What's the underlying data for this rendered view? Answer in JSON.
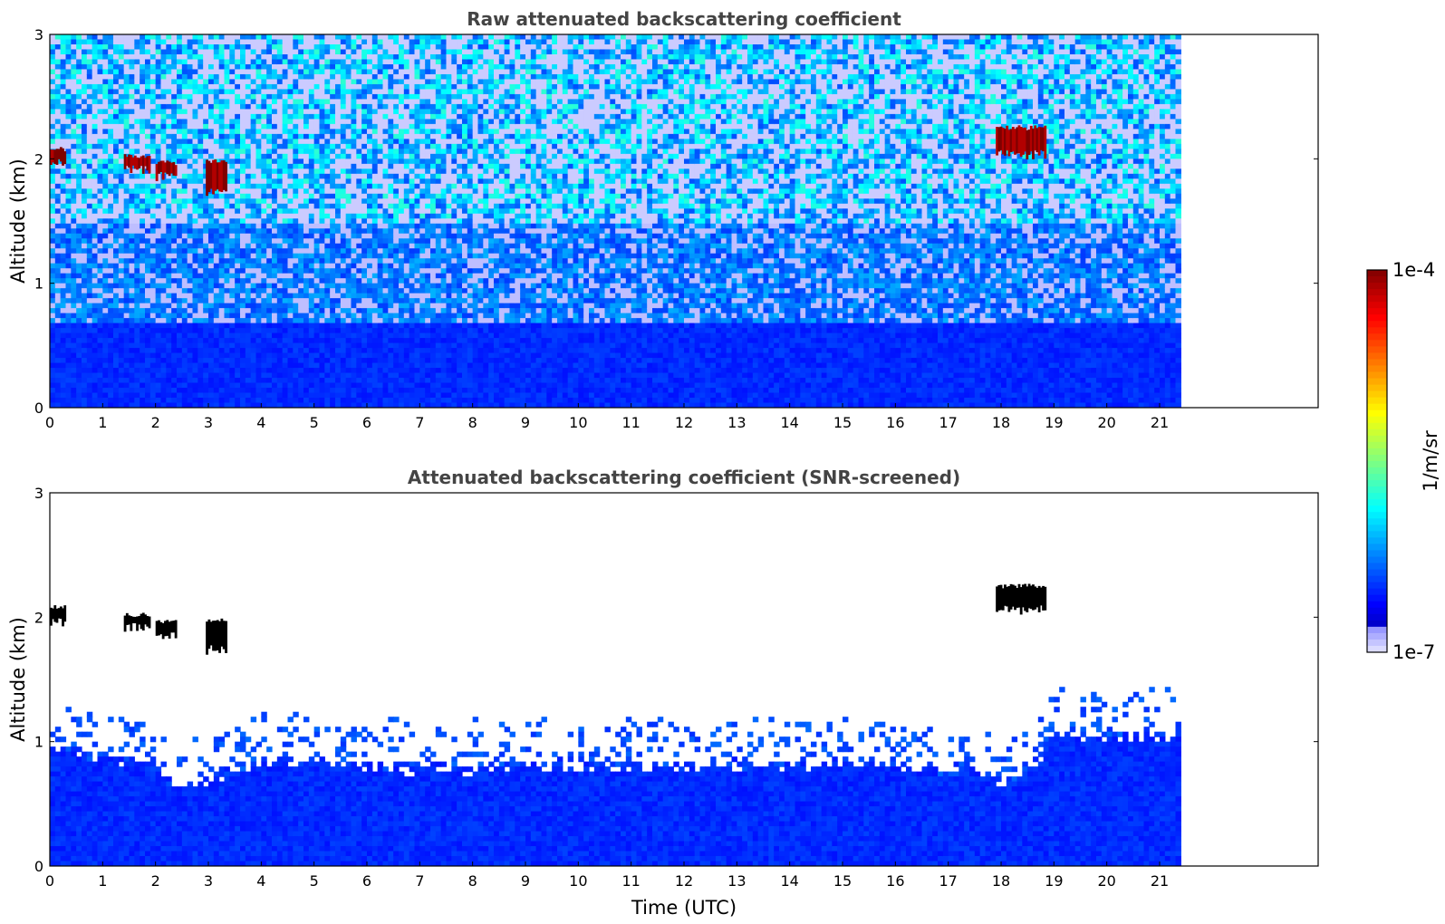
{
  "chart_data": [
    {
      "type": "heatmap",
      "title": "Raw attenuated backscattering coefficient",
      "xlabel": "",
      "ylabel": "Altitude (km)",
      "xlim": [
        0,
        24
      ],
      "ylim": [
        0,
        3
      ],
      "data_extent_x": [
        0,
        21.4
      ],
      "x_ticks": [
        "0",
        "1",
        "2",
        "3",
        "4",
        "5",
        "6",
        "7",
        "8",
        "9",
        "10",
        "11",
        "12",
        "13",
        "14",
        "15",
        "16",
        "17",
        "18",
        "19",
        "20",
        "21"
      ],
      "y_ticks": [
        "0",
        "1",
        "2",
        "3"
      ],
      "grid": false,
      "background": {
        "description_levels_by_altitude_km": [
          {
            "alt": [
              0.0,
              0.7
            ],
            "level": 0.15
          },
          {
            "alt": [
              0.7,
              1.5
            ],
            "level": 0.22
          },
          {
            "alt": [
              1.5,
              3.0
            ],
            "level": 0.35
          }
        ],
        "noise": true
      },
      "features": [
        {
          "t0": 0.0,
          "t1": 0.3,
          "alt_bottom": 1.98,
          "alt_top": 2.08,
          "level": 0.98
        },
        {
          "t0": 1.4,
          "t1": 1.9,
          "alt_bottom": 1.93,
          "alt_top": 2.02,
          "level": 0.96
        },
        {
          "t0": 2.0,
          "t1": 2.4,
          "alt_bottom": 1.87,
          "alt_top": 1.97,
          "level": 0.96
        },
        {
          "t0": 2.95,
          "t1": 3.35,
          "alt_bottom": 1.75,
          "alt_top": 1.98,
          "level": 0.97
        },
        {
          "t0": 17.9,
          "t1": 18.85,
          "alt_bottom": 2.05,
          "alt_top": 2.25,
          "level": 0.97
        }
      ]
    },
    {
      "type": "heatmap",
      "title": "Attenuated backscattering coefficient (SNR-screened)",
      "xlabel": "Time (UTC)",
      "ylabel": "Altitude (km)",
      "xlim": [
        0,
        24
      ],
      "ylim": [
        0,
        3
      ],
      "data_extent_x": [
        0,
        21.4
      ],
      "x_ticks": [
        "0",
        "1",
        "2",
        "3",
        "4",
        "5",
        "6",
        "7",
        "8",
        "9",
        "10",
        "11",
        "12",
        "13",
        "14",
        "15",
        "16",
        "17",
        "18",
        "19",
        "20",
        "21"
      ],
      "y_ticks": [
        "0",
        "1",
        "2",
        "3"
      ],
      "grid": false,
      "screened_top_km": [
        {
          "t": 0.0,
          "alt": 0.95
        },
        {
          "t": 1.0,
          "alt": 0.88
        },
        {
          "t": 2.0,
          "alt": 0.8
        },
        {
          "t": 2.3,
          "alt": 0.66
        },
        {
          "t": 3.0,
          "alt": 0.7
        },
        {
          "t": 4.0,
          "alt": 0.85
        },
        {
          "t": 6.0,
          "alt": 0.8
        },
        {
          "t": 8.0,
          "alt": 0.78
        },
        {
          "t": 10.0,
          "alt": 0.82
        },
        {
          "t": 12.0,
          "alt": 0.8
        },
        {
          "t": 14.0,
          "alt": 0.82
        },
        {
          "t": 16.0,
          "alt": 0.8
        },
        {
          "t": 17.5,
          "alt": 0.78
        },
        {
          "t": 18.0,
          "alt": 0.65
        },
        {
          "t": 18.6,
          "alt": 0.8
        },
        {
          "t": 19.0,
          "alt": 1.05
        },
        {
          "t": 21.4,
          "alt": 1.05
        }
      ],
      "features": [
        {
          "t0": 0.0,
          "t1": 0.3,
          "alt_bottom": 1.98,
          "alt_top": 2.08,
          "level": 1.0
        },
        {
          "t0": 1.4,
          "t1": 1.9,
          "alt_bottom": 1.93,
          "alt_top": 2.02,
          "level": 1.0
        },
        {
          "t0": 2.0,
          "t1": 2.4,
          "alt_bottom": 1.87,
          "alt_top": 1.97,
          "level": 1.0
        },
        {
          "t0": 2.95,
          "t1": 3.35,
          "alt_bottom": 1.75,
          "alt_top": 1.98,
          "level": 1.0
        },
        {
          "t0": 17.9,
          "t1": 18.85,
          "alt_bottom": 2.07,
          "alt_top": 2.25,
          "level": 1.0
        }
      ]
    }
  ],
  "colorbar": {
    "label": "1/m/sr",
    "max_label": "1e-4",
    "min_label": "1e-7",
    "scale": "log",
    "colormap": "jet"
  }
}
